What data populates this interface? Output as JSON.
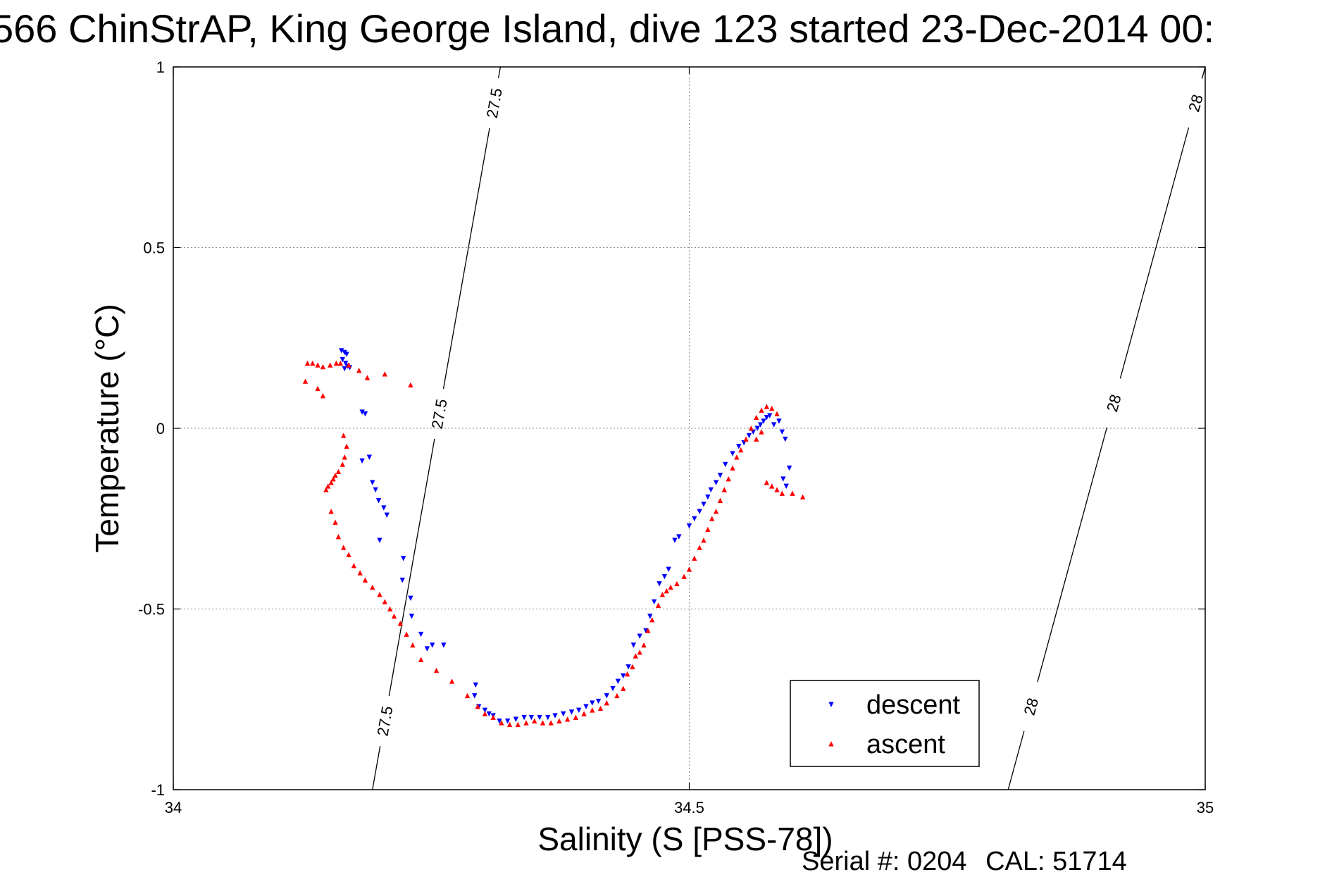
{
  "title": "566 ChinStrAP, King George Island, dive 123 started 23-Dec-2014 00:",
  "footer": {
    "serial": "Serial #: 0204",
    "cal": "CAL: 51714"
  },
  "colors": {
    "descent": "#0000ff",
    "ascent": "#ff0000",
    "axis": "#000000",
    "grid": "#8a8a8a"
  },
  "chart_data": {
    "type": "scatter",
    "xlabel": "Salinity (S [PSS-78])",
    "ylabel": "Temperature (°C)",
    "xlim": [
      34,
      35
    ],
    "ylim": [
      -1,
      1
    ],
    "xticks": [
      34,
      34.5,
      35
    ],
    "yticks": [
      -1,
      -0.5,
      0,
      0.5,
      1
    ],
    "xtick_labels": [
      "34",
      "34.5",
      "35"
    ],
    "ytick_labels": [
      "-1",
      "-0.5",
      "0",
      "0.5",
      "1"
    ],
    "grid": true,
    "legend_position": "lower-right",
    "contours": [
      {
        "label": "27.5",
        "points": [
          [
            34.193,
            -1
          ],
          [
            34.317,
            1
          ]
        ],
        "label_at_y": [
          0.9,
          0.04,
          -0.81
        ]
      },
      {
        "label": "28",
        "points": [
          [
            34.809,
            -1
          ],
          [
            35.0,
            1
          ]
        ],
        "label_at_y": [
          0.9,
          0.07,
          -0.77
        ]
      }
    ],
    "series": [
      {
        "name": "descent",
        "marker": "triangle-down",
        "points": [
          [
            34.163,
            0.215
          ],
          [
            34.166,
            0.21
          ],
          [
            34.168,
            0.205
          ],
          [
            34.164,
            0.19
          ],
          [
            34.167,
            0.18
          ],
          [
            34.169,
            0.172
          ],
          [
            34.171,
            0.168
          ],
          [
            34.166,
            0.165
          ],
          [
            34.183,
            0.045
          ],
          [
            34.186,
            0.04
          ],
          [
            34.183,
            -0.09
          ],
          [
            34.19,
            -0.08
          ],
          [
            34.193,
            -0.15
          ],
          [
            34.196,
            -0.17
          ],
          [
            34.199,
            -0.2
          ],
          [
            34.204,
            -0.22
          ],
          [
            34.207,
            -0.24
          ],
          [
            34.2,
            -0.31
          ],
          [
            34.223,
            -0.36
          ],
          [
            34.222,
            -0.42
          ],
          [
            34.23,
            -0.47
          ],
          [
            34.231,
            -0.52
          ],
          [
            34.24,
            -0.57
          ],
          [
            34.246,
            -0.61
          ],
          [
            34.251,
            -0.6
          ],
          [
            34.262,
            -0.6
          ],
          [
            34.293,
            -0.71
          ],
          [
            34.292,
            -0.74
          ],
          [
            34.296,
            -0.77
          ],
          [
            34.302,
            -0.78
          ],
          [
            34.306,
            -0.79
          ],
          [
            34.31,
            -0.795
          ],
          [
            34.316,
            -0.81
          ],
          [
            34.324,
            -0.81
          ],
          [
            34.332,
            -0.805
          ],
          [
            34.34,
            -0.8
          ],
          [
            34.347,
            -0.8
          ],
          [
            34.355,
            -0.8
          ],
          [
            34.363,
            -0.8
          ],
          [
            34.37,
            -0.795
          ],
          [
            34.378,
            -0.79
          ],
          [
            34.386,
            -0.785
          ],
          [
            34.393,
            -0.78
          ],
          [
            34.4,
            -0.77
          ],
          [
            34.406,
            -0.76
          ],
          [
            34.412,
            -0.755
          ],
          [
            34.42,
            -0.74
          ],
          [
            34.426,
            -0.72
          ],
          [
            34.431,
            -0.7
          ],
          [
            34.436,
            -0.685
          ],
          [
            34.441,
            -0.66
          ],
          [
            34.446,
            -0.6
          ],
          [
            34.452,
            -0.575
          ],
          [
            34.458,
            -0.56
          ],
          [
            34.462,
            -0.52
          ],
          [
            34.466,
            -0.48
          ],
          [
            34.471,
            -0.43
          ],
          [
            34.476,
            -0.41
          ],
          [
            34.48,
            -0.39
          ],
          [
            34.486,
            -0.31
          ],
          [
            34.49,
            -0.3
          ],
          [
            34.5,
            -0.27
          ],
          [
            34.505,
            -0.25
          ],
          [
            34.51,
            -0.23
          ],
          [
            34.514,
            -0.21
          ],
          [
            34.518,
            -0.19
          ],
          [
            34.521,
            -0.17
          ],
          [
            34.526,
            -0.15
          ],
          [
            34.53,
            -0.13
          ],
          [
            34.535,
            -0.1
          ],
          [
            34.542,
            -0.07
          ],
          [
            34.548,
            -0.05
          ],
          [
            34.553,
            -0.04
          ],
          [
            34.558,
            -0.02
          ],
          [
            34.562,
            -0.01
          ],
          [
            34.566,
            0.0
          ],
          [
            34.569,
            0.01
          ],
          [
            34.572,
            0.02
          ],
          [
            34.575,
            0.03
          ],
          [
            34.578,
            0.035
          ],
          [
            34.582,
            0.01
          ],
          [
            34.587,
            0.02
          ],
          [
            34.59,
            -0.01
          ],
          [
            34.593,
            -0.03
          ],
          [
            34.597,
            -0.11
          ],
          [
            34.594,
            -0.16
          ],
          [
            34.591,
            -0.14
          ]
        ]
      },
      {
        "name": "ascent",
        "marker": "triangle-up",
        "points": [
          [
            34.13,
            0.18
          ],
          [
            34.135,
            0.18
          ],
          [
            34.14,
            0.175
          ],
          [
            34.145,
            0.17
          ],
          [
            34.152,
            0.175
          ],
          [
            34.158,
            0.18
          ],
          [
            34.162,
            0.18
          ],
          [
            34.17,
            0.175
          ],
          [
            34.18,
            0.16
          ],
          [
            34.188,
            0.14
          ],
          [
            34.205,
            0.15
          ],
          [
            34.23,
            0.12
          ],
          [
            34.128,
            0.13
          ],
          [
            34.14,
            0.11
          ],
          [
            34.145,
            0.09
          ],
          [
            34.165,
            -0.02
          ],
          [
            34.168,
            -0.05
          ],
          [
            34.166,
            -0.08
          ],
          [
            34.164,
            -0.1
          ],
          [
            34.16,
            -0.12
          ],
          [
            34.157,
            -0.13
          ],
          [
            34.155,
            -0.14
          ],
          [
            34.153,
            -0.15
          ],
          [
            34.15,
            -0.16
          ],
          [
            34.148,
            -0.17
          ],
          [
            34.153,
            -0.23
          ],
          [
            34.157,
            -0.26
          ],
          [
            34.16,
            -0.3
          ],
          [
            34.165,
            -0.33
          ],
          [
            34.17,
            -0.35
          ],
          [
            34.175,
            -0.38
          ],
          [
            34.181,
            -0.4
          ],
          [
            34.186,
            -0.42
          ],
          [
            34.193,
            -0.44
          ],
          [
            34.2,
            -0.46
          ],
          [
            34.205,
            -0.48
          ],
          [
            34.21,
            -0.5
          ],
          [
            34.214,
            -0.52
          ],
          [
            34.22,
            -0.54
          ],
          [
            34.226,
            -0.57
          ],
          [
            34.232,
            -0.6
          ],
          [
            34.24,
            -0.64
          ],
          [
            34.255,
            -0.67
          ],
          [
            34.27,
            -0.7
          ],
          [
            34.285,
            -0.74
          ],
          [
            34.295,
            -0.77
          ],
          [
            34.302,
            -0.79
          ],
          [
            34.31,
            -0.8
          ],
          [
            34.318,
            -0.815
          ],
          [
            34.326,
            -0.82
          ],
          [
            34.334,
            -0.82
          ],
          [
            34.342,
            -0.815
          ],
          [
            34.35,
            -0.81
          ],
          [
            34.358,
            -0.815
          ],
          [
            34.366,
            -0.815
          ],
          [
            34.374,
            -0.81
          ],
          [
            34.382,
            -0.805
          ],
          [
            34.39,
            -0.8
          ],
          [
            34.398,
            -0.79
          ],
          [
            34.406,
            -0.78
          ],
          [
            34.414,
            -0.775
          ],
          [
            34.42,
            -0.76
          ],
          [
            34.43,
            -0.74
          ],
          [
            34.436,
            -0.72
          ],
          [
            34.44,
            -0.68
          ],
          [
            34.445,
            -0.66
          ],
          [
            34.448,
            -0.63
          ],
          [
            34.452,
            -0.62
          ],
          [
            34.456,
            -0.6
          ],
          [
            34.46,
            -0.56
          ],
          [
            34.464,
            -0.53
          ],
          [
            34.47,
            -0.49
          ],
          [
            34.474,
            -0.46
          ],
          [
            34.478,
            -0.45
          ],
          [
            34.482,
            -0.44
          ],
          [
            34.488,
            -0.43
          ],
          [
            34.495,
            -0.41
          ],
          [
            34.5,
            -0.39
          ],
          [
            34.505,
            -0.36
          ],
          [
            34.51,
            -0.33
          ],
          [
            34.514,
            -0.31
          ],
          [
            34.518,
            -0.28
          ],
          [
            34.522,
            -0.25
          ],
          [
            34.526,
            -0.23
          ],
          [
            34.53,
            -0.2
          ],
          [
            34.534,
            -0.17
          ],
          [
            34.538,
            -0.14
          ],
          [
            34.542,
            -0.11
          ],
          [
            34.546,
            -0.08
          ],
          [
            34.55,
            -0.06
          ],
          [
            34.555,
            -0.03
          ],
          [
            34.56,
            0.0
          ],
          [
            34.565,
            0.03
          ],
          [
            34.57,
            0.05
          ],
          [
            34.575,
            0.06
          ],
          [
            34.58,
            0.055
          ],
          [
            34.585,
            0.04
          ],
          [
            34.57,
            -0.01
          ],
          [
            34.565,
            -0.03
          ],
          [
            34.575,
            -0.15
          ],
          [
            34.58,
            -0.16
          ],
          [
            34.585,
            -0.17
          ],
          [
            34.59,
            -0.18
          ],
          [
            34.6,
            -0.18
          ],
          [
            34.61,
            -0.19
          ]
        ]
      }
    ]
  }
}
